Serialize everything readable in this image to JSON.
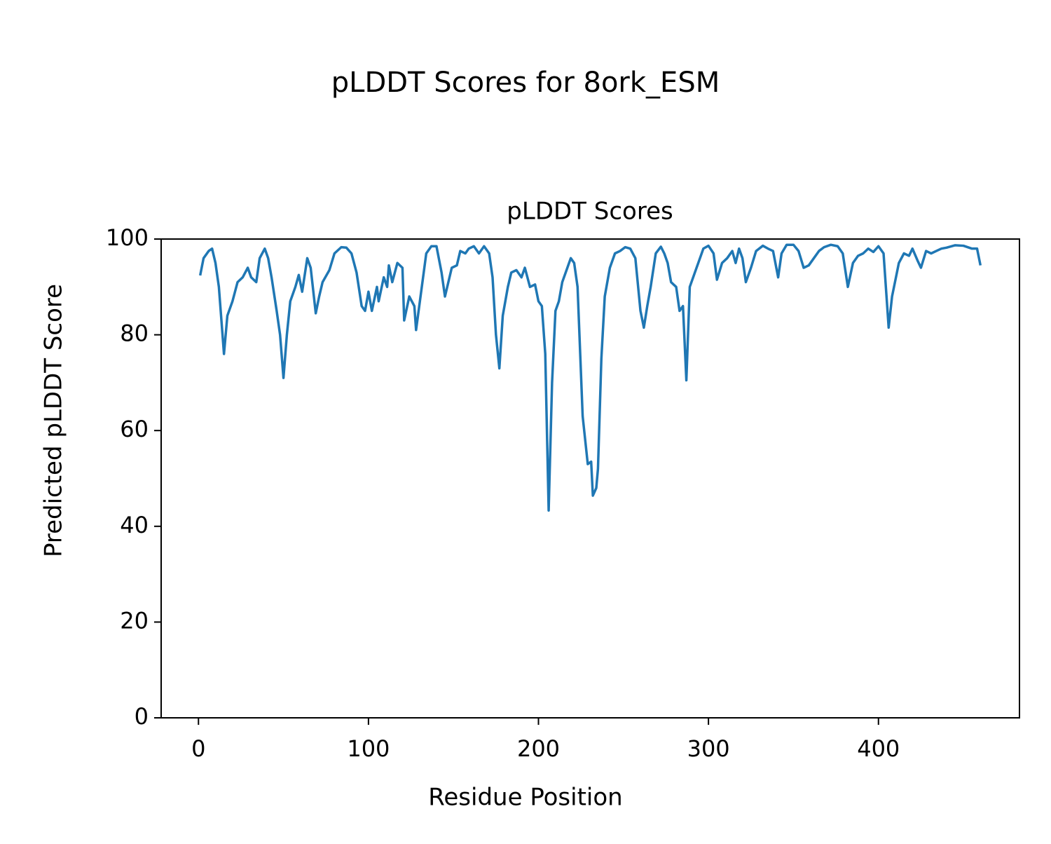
{
  "chart_data": {
    "type": "line",
    "title": "pLDDT Scores for 8ork_ESM",
    "subtitle": "pLDDT Scores",
    "x_label": "Residue Position",
    "y_label": "Predicted pLDDT Score",
    "xlim": [
      -21.95,
      482.95
    ],
    "ylim": [
      0,
      100
    ],
    "xticks": [
      0,
      100,
      200,
      300,
      400
    ],
    "yticks": [
      0,
      20,
      40,
      60,
      80,
      100
    ],
    "grid": false,
    "series": [
      {
        "name": "pLDDT",
        "color": "#1f77b4",
        "x": [
          1,
          3,
          6,
          8,
          10,
          12,
          15,
          17,
          20,
          23,
          26,
          29,
          31,
          34,
          36,
          39,
          41,
          43,
          46,
          48,
          50,
          52,
          54,
          57,
          59,
          61,
          64,
          66,
          69,
          71,
          73,
          77,
          80,
          84,
          87,
          90,
          93,
          96,
          98,
          100,
          102,
          105,
          106,
          109,
          111,
          112,
          114,
          117,
          120,
          121,
          124,
          127,
          128,
          131,
          134,
          137,
          140,
          143,
          145,
          147,
          149,
          152,
          154,
          157,
          159,
          162,
          165,
          168,
          171,
          173,
          175,
          177,
          179,
          182,
          184,
          187,
          190,
          192,
          195,
          198,
          200,
          202,
          204,
          206,
          208,
          210,
          212,
          214,
          217,
          219,
          221,
          223,
          226,
          229,
          231,
          232,
          234,
          235,
          237,
          239,
          242,
          245,
          248,
          251,
          254,
          257,
          260,
          262,
          264,
          266,
          269,
          272,
          274,
          276,
          278,
          281,
          283,
          285,
          287,
          289,
          292,
          294,
          297,
          300,
          303,
          305,
          308,
          311,
          314,
          316,
          318,
          320,
          322,
          325,
          328,
          332,
          335,
          338,
          341,
          343,
          346,
          350,
          353,
          356,
          359,
          362,
          365,
          368,
          372,
          376,
          379,
          382,
          385,
          388,
          391,
          394,
          397,
          400,
          403,
          406,
          408,
          410,
          412,
          415,
          418,
          420,
          423,
          425,
          428,
          431,
          434,
          437,
          440,
          445,
          450,
          455,
          458,
          460
        ],
        "values": [
          92.4,
          96,
          97.5,
          98,
          95,
          90,
          76,
          84,
          87,
          91,
          92,
          94,
          92,
          91,
          96,
          98,
          96,
          92,
          85,
          80,
          71,
          80,
          87,
          90,
          92.5,
          89,
          96,
          94,
          84.5,
          88,
          91,
          93.5,
          97,
          98.3,
          98.2,
          97,
          93,
          86,
          85,
          89,
          85,
          90,
          87,
          92,
          90,
          94.5,
          91,
          95,
          94,
          83,
          88,
          86,
          81,
          89,
          97,
          98.5,
          98.5,
          93,
          88,
          91,
          94,
          94.5,
          97.5,
          97,
          98,
          98.5,
          97,
          98.5,
          97,
          92,
          80,
          73,
          84,
          90,
          93,
          93.5,
          92,
          94,
          90,
          90.5,
          87,
          86,
          76,
          43.3,
          70,
          85,
          87,
          91,
          94,
          96,
          95,
          90,
          63,
          53,
          53.5,
          46.4,
          48,
          52,
          75,
          88,
          94,
          97,
          97.5,
          98.3,
          98,
          96,
          85,
          81.5,
          86,
          90,
          97,
          98.4,
          97,
          95,
          91,
          90,
          85,
          86,
          70.5,
          90,
          93,
          95,
          98,
          98.6,
          97,
          91.5,
          95,
          96,
          97.5,
          95,
          98,
          96,
          91,
          94,
          97.5,
          98.6,
          98,
          97.5,
          92,
          97,
          98.8,
          98.8,
          97.5,
          94,
          94.5,
          96,
          97.5,
          98.3,
          98.8,
          98.5,
          97,
          90,
          95,
          96.5,
          97,
          98,
          97.3,
          98.5,
          97,
          81.5,
          88,
          91.5,
          95,
          97,
          96.5,
          98,
          95.5,
          94,
          97.5,
          97,
          97.5,
          98,
          98.2,
          98.7,
          98.6,
          98,
          98,
          94.5
        ]
      }
    ]
  }
}
